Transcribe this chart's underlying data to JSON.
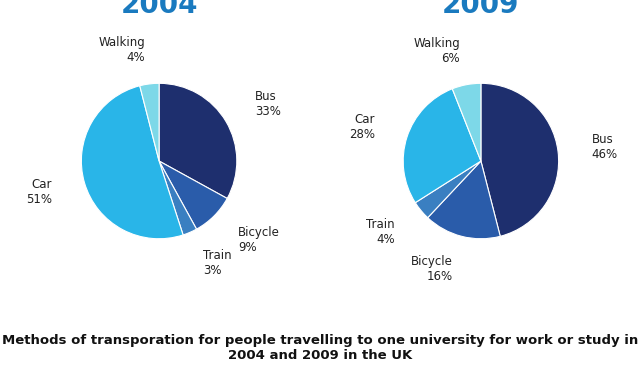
{
  "title_2004": "2004",
  "title_2009": "2009",
  "title_color": "#1a7abf",
  "chart_2004": {
    "labels": [
      "Bus",
      "Bicycle",
      "Train",
      "Car",
      "Walking"
    ],
    "values": [
      33,
      9,
      3,
      51,
      4
    ],
    "colors": [
      "#1e2f6e",
      "#2a5caa",
      "#3a7fc1",
      "#29b5e8",
      "#7dd8e8"
    ],
    "startangle": 90
  },
  "chart_2009": {
    "labels": [
      "Bus",
      "Bicycle",
      "Train",
      "Car",
      "Walking"
    ],
    "values": [
      46,
      16,
      4,
      28,
      6
    ],
    "colors": [
      "#1e2f6e",
      "#2a5caa",
      "#3a7fc1",
      "#29b5e8",
      "#7dd8e8"
    ],
    "startangle": 90
  },
  "caption_line1": "Methods of transporation for people travelling to one university for work or study in",
  "caption_line2": "2004 and 2009 in the UK",
  "caption_fontsize": 9.5,
  "title_fontsize": 20,
  "label_fontsize": 8.5,
  "background_color": "#ffffff"
}
